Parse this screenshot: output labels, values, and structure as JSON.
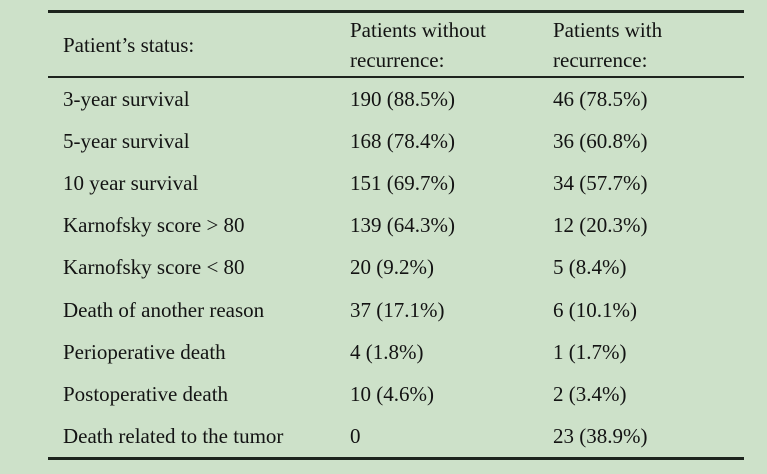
{
  "colors": {
    "background": "#cde1c9",
    "rule_line": "#1d241d",
    "text": "#131313"
  },
  "table": {
    "columns": [
      {
        "label": "Patient’s status:"
      },
      {
        "label": "Patients without recurrence:"
      },
      {
        "label": "Patients with recurrence:"
      }
    ],
    "rows": [
      {
        "status": "3-year survival",
        "without": "190 (88.5%)",
        "with": "46 (78.5%)"
      },
      {
        "status": "5-year survival",
        "without": "168 (78.4%)",
        "with": "36 (60.8%)"
      },
      {
        "status": "10 year survival",
        "without": "151 (69.7%)",
        "with": "34 (57.7%)"
      },
      {
        "status": "Karnofsky score > 80",
        "without": "139 (64.3%)",
        "with": "12 (20.3%)"
      },
      {
        "status": "Karnofsky score < 80",
        "without": "20 (9.2%)",
        "with": "5 (8.4%)"
      },
      {
        "status": "Death of another reason",
        "without": "37 (17.1%)",
        "with": "6 (10.1%)"
      },
      {
        "status": "Perioperative death",
        "without": "4 (1.8%)",
        "with": "1 (1.7%)"
      },
      {
        "status": "Postoperative death",
        "without": "10 (4.6%)",
        "with": "2 (3.4%)"
      },
      {
        "status": "Death related to the tumor",
        "without": "0",
        "with": "23 (38.9%)"
      }
    ]
  }
}
